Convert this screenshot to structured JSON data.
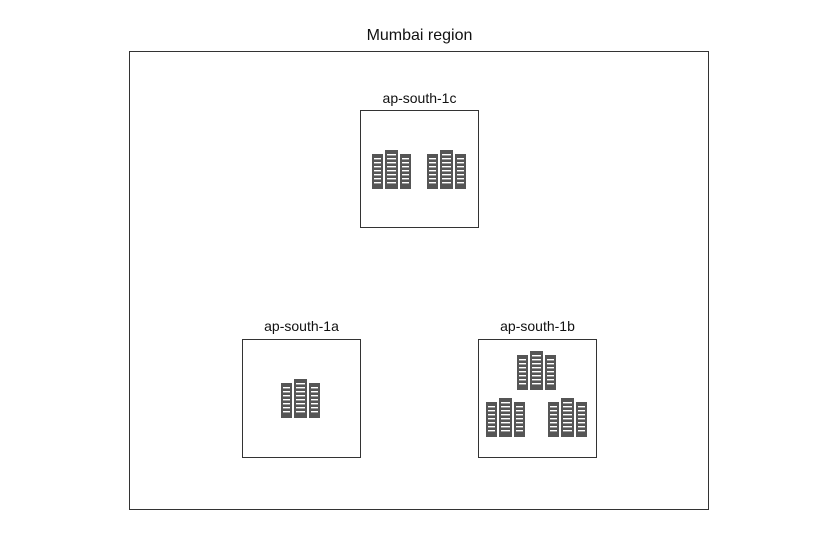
{
  "region": {
    "title": "Mumbai region"
  },
  "zones": [
    {
      "label": "ap-south-1c",
      "server_count": 2
    },
    {
      "label": "ap-south-1a",
      "server_count": 1
    },
    {
      "label": "ap-south-1b",
      "server_count": 3
    }
  ],
  "icons": {
    "server": "server-rack-icon"
  },
  "colors": {
    "icon": "#555555",
    "border": "#333333"
  }
}
